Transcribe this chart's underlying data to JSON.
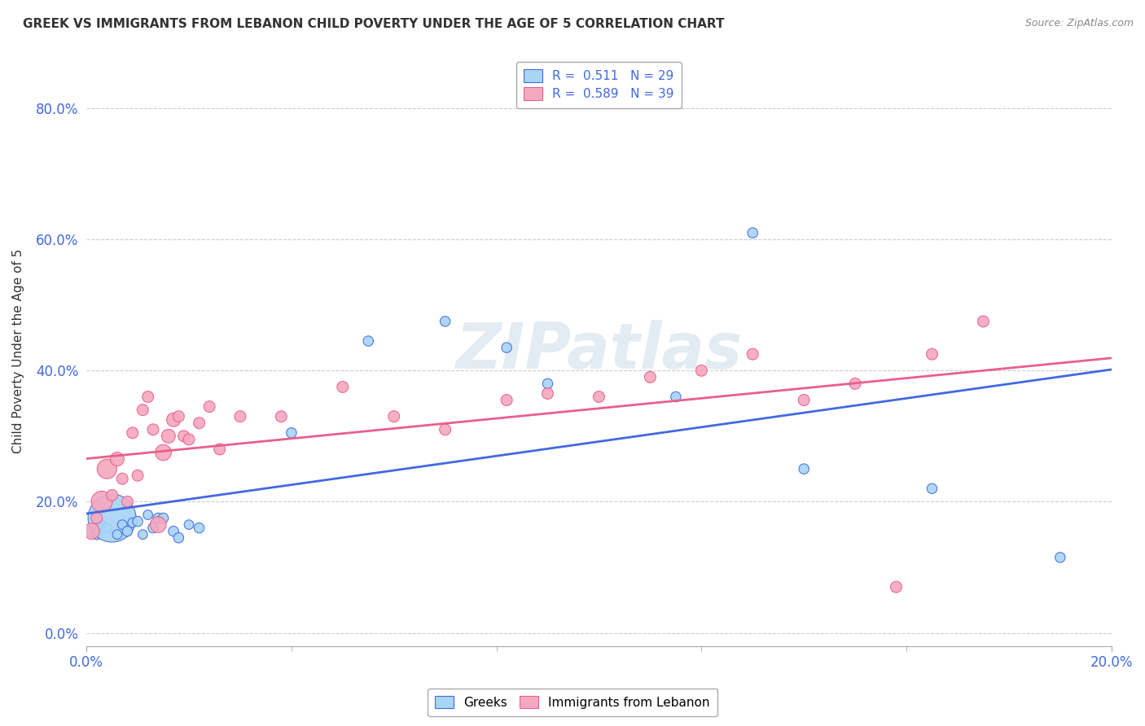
{
  "title": "GREEK VS IMMIGRANTS FROM LEBANON CHILD POVERTY UNDER THE AGE OF 5 CORRELATION CHART",
  "source": "Source: ZipAtlas.com",
  "ylabel": "Child Poverty Under the Age of 5",
  "xlim": [
    0.0,
    0.2
  ],
  "ylim": [
    -0.02,
    0.88
  ],
  "xticks": [
    0.0,
    0.2
  ],
  "yticks": [
    0.0,
    0.2,
    0.4,
    0.6,
    0.8
  ],
  "greek_R": 0.511,
  "greek_N": 29,
  "lebanon_R": 0.589,
  "lebanon_N": 39,
  "greek_color": "#a8d4f5",
  "lebanon_color": "#f5a8c0",
  "greek_line_color": "#4169E1",
  "lebanon_line_color": "#e8608a",
  "watermark": "ZIPatlas",
  "background_color": "#FFFFFF",
  "greek_x": [
    0.001,
    0.002,
    0.003,
    0.004,
    0.005,
    0.006,
    0.007,
    0.008,
    0.009,
    0.01,
    0.011,
    0.012,
    0.013,
    0.014,
    0.015,
    0.017,
    0.018,
    0.02,
    0.022,
    0.04,
    0.055,
    0.07,
    0.082,
    0.09,
    0.115,
    0.13,
    0.14,
    0.165,
    0.19
  ],
  "greek_y": [
    0.155,
    0.15,
    0.165,
    0.16,
    0.175,
    0.15,
    0.165,
    0.155,
    0.168,
    0.17,
    0.15,
    0.18,
    0.16,
    0.175,
    0.175,
    0.155,
    0.145,
    0.165,
    0.16,
    0.305,
    0.445,
    0.475,
    0.435,
    0.38,
    0.36,
    0.61,
    0.25,
    0.22,
    0.115
  ],
  "greek_size": [
    100,
    80,
    70,
    80,
    1800,
    70,
    70,
    80,
    70,
    80,
    70,
    70,
    80,
    80,
    80,
    80,
    80,
    70,
    80,
    80,
    80,
    80,
    80,
    80,
    80,
    80,
    80,
    80,
    80
  ],
  "lebanon_x": [
    0.001,
    0.002,
    0.003,
    0.004,
    0.005,
    0.006,
    0.007,
    0.008,
    0.009,
    0.01,
    0.011,
    0.012,
    0.013,
    0.014,
    0.015,
    0.016,
    0.017,
    0.018,
    0.019,
    0.02,
    0.022,
    0.024,
    0.026,
    0.03,
    0.038,
    0.05,
    0.06,
    0.07,
    0.082,
    0.09,
    0.1,
    0.11,
    0.12,
    0.13,
    0.14,
    0.15,
    0.158,
    0.165,
    0.175
  ],
  "lebanon_y": [
    0.155,
    0.175,
    0.2,
    0.25,
    0.21,
    0.265,
    0.235,
    0.2,
    0.305,
    0.24,
    0.34,
    0.36,
    0.31,
    0.165,
    0.275,
    0.3,
    0.325,
    0.33,
    0.3,
    0.295,
    0.32,
    0.345,
    0.28,
    0.33,
    0.33,
    0.375,
    0.33,
    0.31,
    0.355,
    0.365,
    0.36,
    0.39,
    0.4,
    0.425,
    0.355,
    0.38,
    0.07,
    0.425,
    0.475
  ],
  "lebanon_size": [
    200,
    100,
    350,
    300,
    100,
    150,
    100,
    100,
    100,
    100,
    100,
    100,
    100,
    200,
    200,
    150,
    150,
    100,
    100,
    100,
    100,
    100,
    100,
    100,
    100,
    100,
    100,
    100,
    100,
    100,
    100,
    100,
    100,
    100,
    100,
    100,
    100,
    100,
    100
  ]
}
